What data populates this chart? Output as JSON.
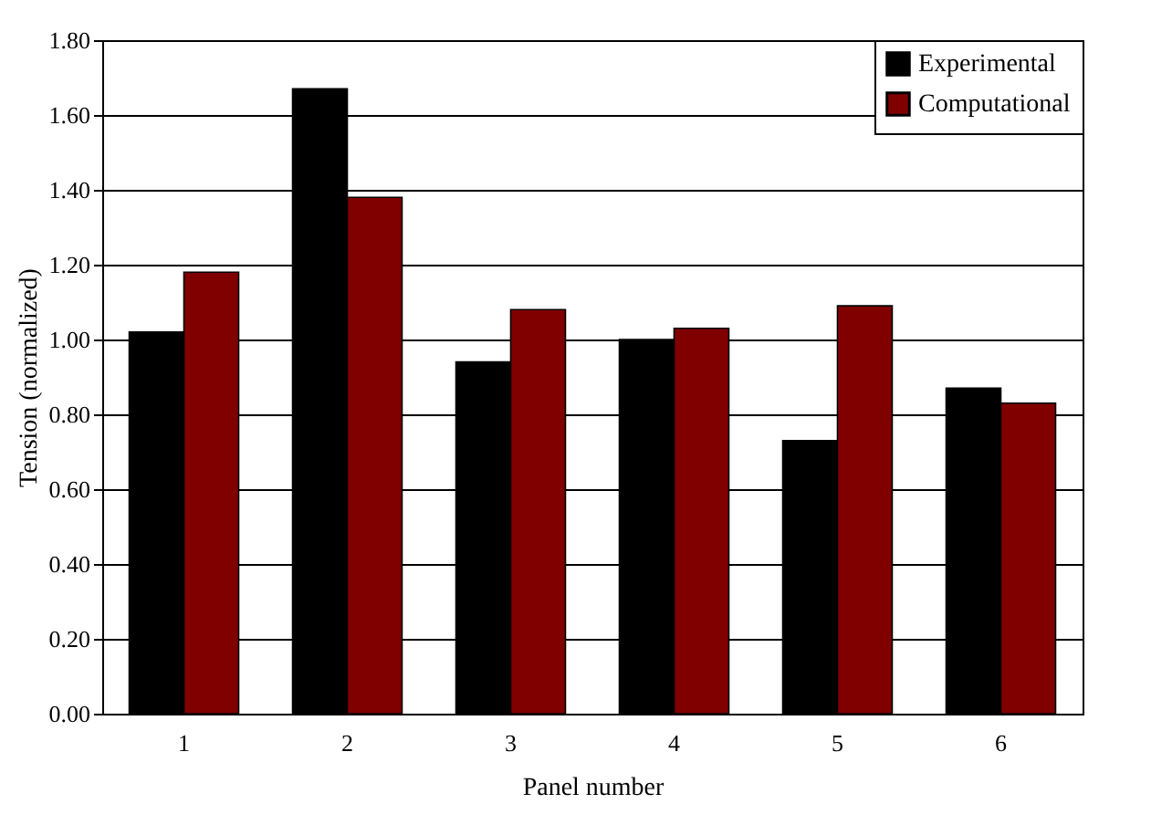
{
  "chart_data": {
    "type": "bar",
    "xlabel": "Panel number",
    "ylabel": "Tension (normalized)",
    "categories": [
      "1",
      "2",
      "3",
      "4",
      "5",
      "6"
    ],
    "series": [
      {
        "name": "Experimental",
        "color": "#000000",
        "values": [
          1.02,
          1.67,
          0.94,
          1.0,
          0.73,
          0.87
        ]
      },
      {
        "name": "Computational",
        "color": "#800000",
        "values": [
          1.18,
          1.38,
          1.08,
          1.03,
          1.09,
          0.83
        ]
      }
    ],
    "ylim": [
      0,
      1.8
    ],
    "yticks": [
      {
        "value": 0,
        "label": "0.00"
      },
      {
        "value": 0.2,
        "label": "0.20"
      },
      {
        "value": 0.4,
        "label": "0.40"
      },
      {
        "value": 0.6,
        "label": "0.60"
      },
      {
        "value": 0.8,
        "label": "0.80"
      },
      {
        "value": 1,
        "label": "1.00"
      },
      {
        "value": 1.2,
        "label": "1.20"
      },
      {
        "value": 1.4,
        "label": "1.40"
      },
      {
        "value": 1.6,
        "label": "1.60"
      },
      {
        "value": 1.8,
        "label": "1.80"
      }
    ],
    "grid": "y",
    "legend": "top right"
  }
}
